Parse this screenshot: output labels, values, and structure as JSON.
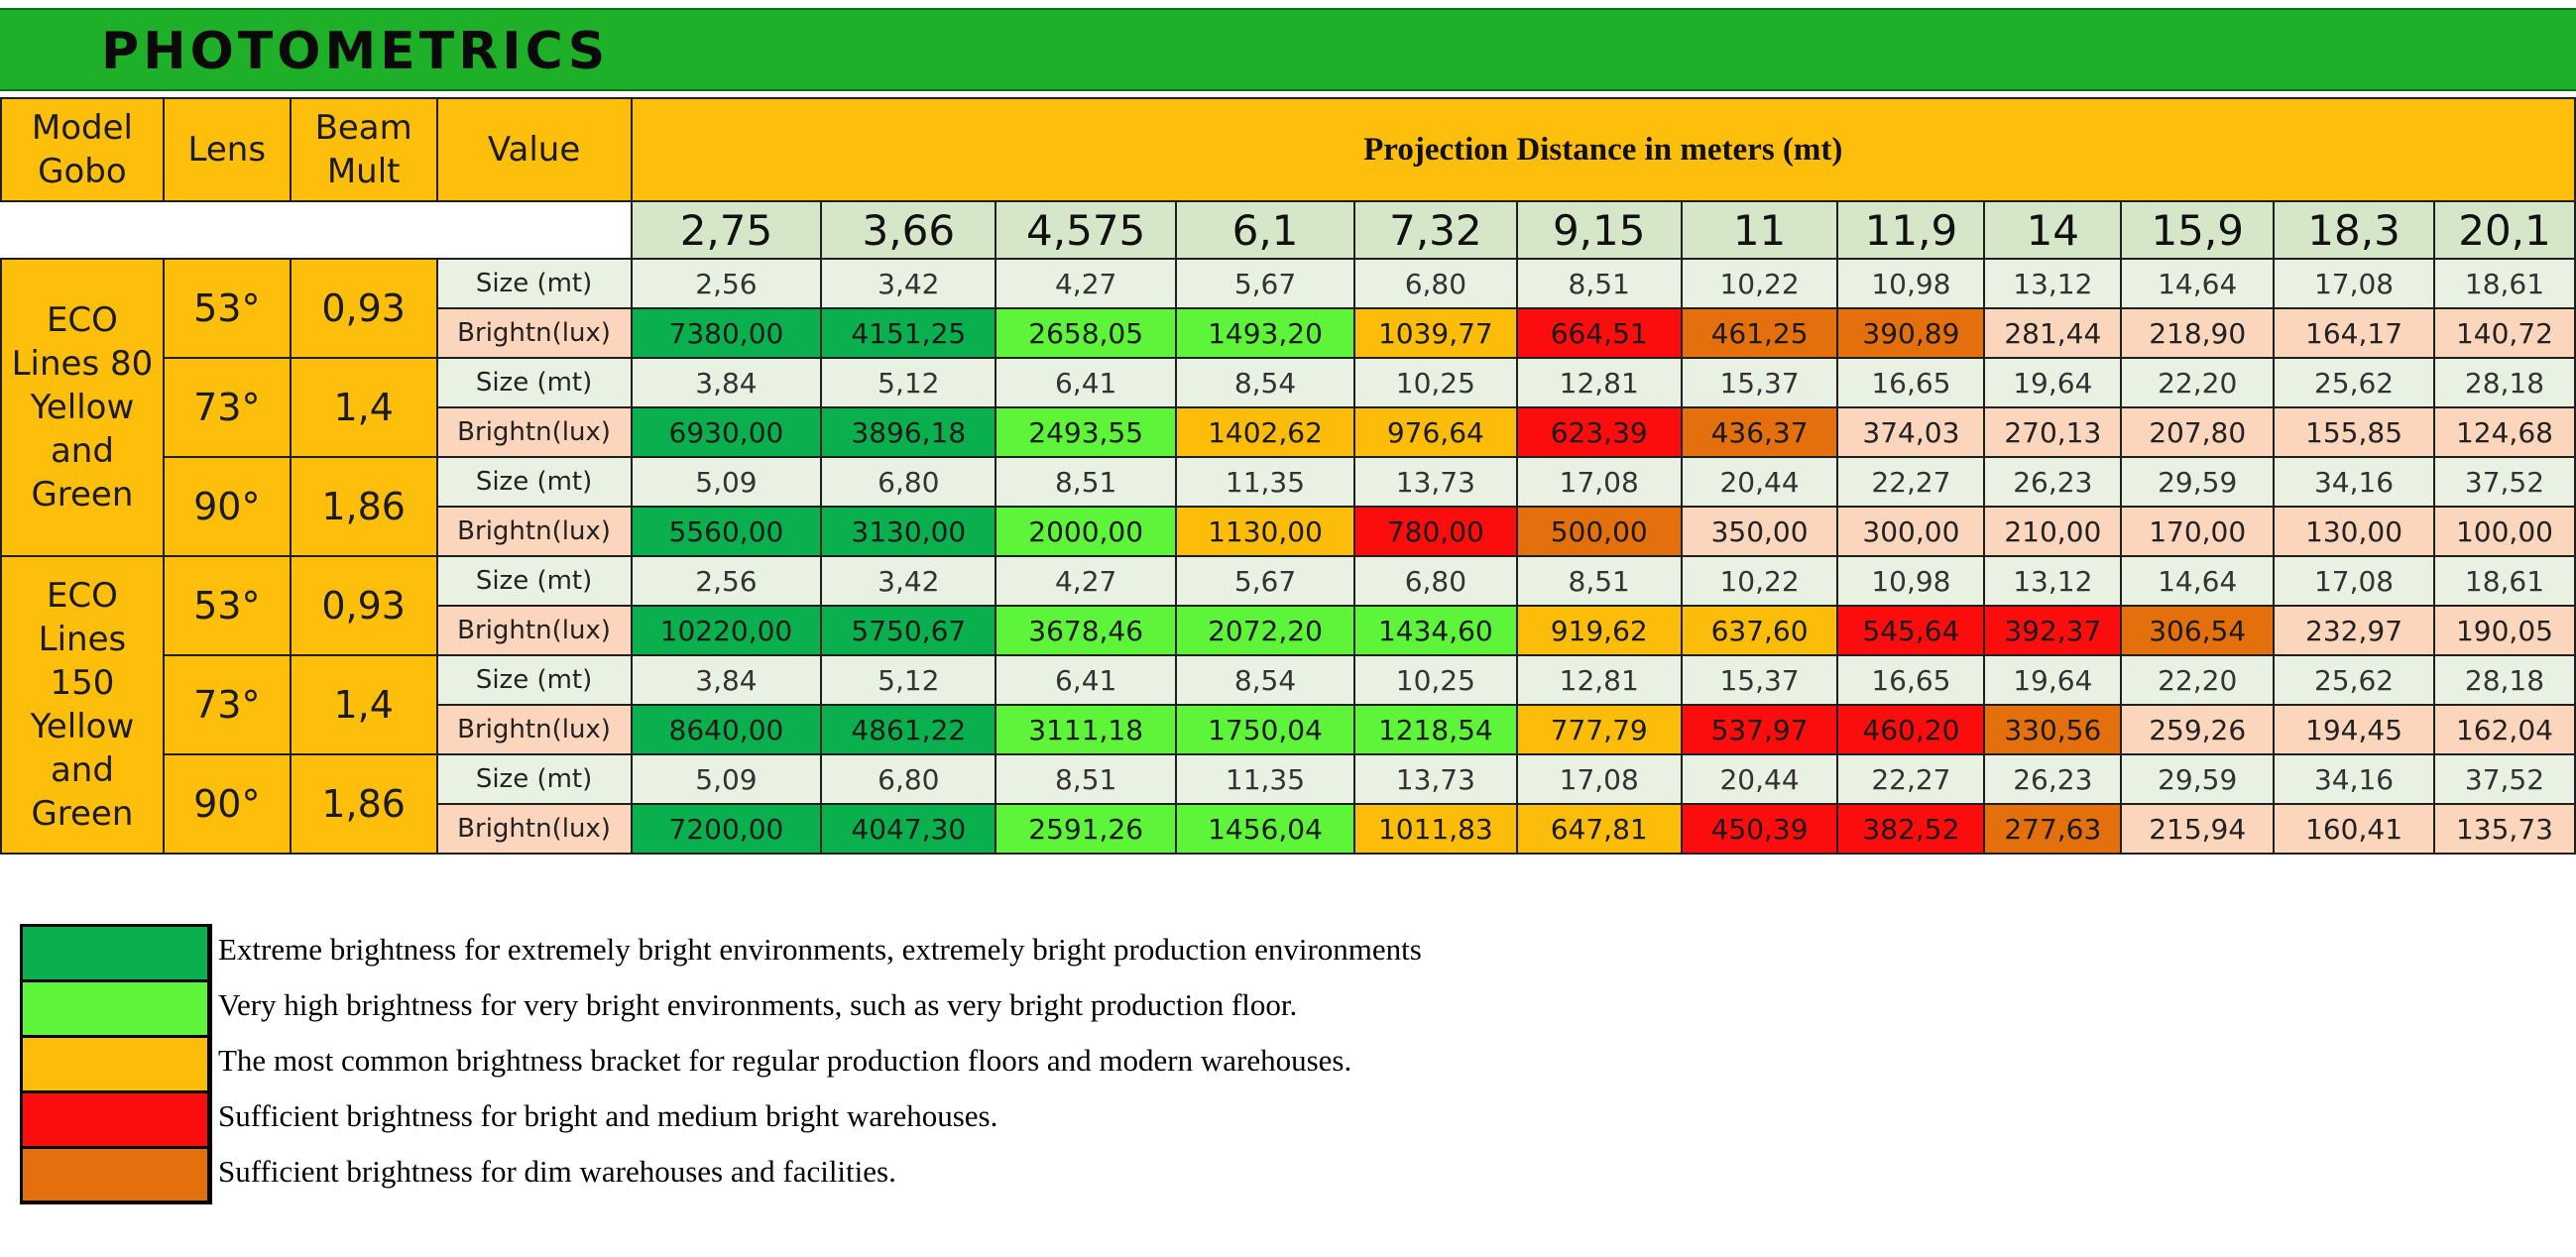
{
  "title": "PHOTOMETRICS",
  "headers": {
    "model_gobo": "Model Gobo",
    "lens": "Lens",
    "beam_mult": "Beam Mult",
    "value": "Value",
    "projection": "Projection Distance in meters (mt)"
  },
  "distances": [
    "2,75",
    "3,66",
    "4,575",
    "6,1",
    "7,32",
    "9,15",
    "11",
    "11,9",
    "14",
    "15,9",
    "18,3",
    "20,1"
  ],
  "labels": {
    "size": "Size (mt)",
    "brightness": "Brightn(lux)"
  },
  "colors": {
    "xg": "#0bb04e",
    "vg": "#5ef43a",
    "am": "#fcbd0a",
    "rd": "#fb0d0d",
    "or": "#e3700d",
    "lt": "#fcd5bd"
  },
  "groups": [
    {
      "model": "ECO Lines 80 Yellow and Green",
      "rows": [
        {
          "lens": "53°",
          "beam": "0,93",
          "size": [
            "2,56",
            "3,42",
            "4,27",
            "5,67",
            "6,80",
            "8,51",
            "10,22",
            "10,98",
            "13,12",
            "14,64",
            "17,08",
            "18,61"
          ],
          "brightness": [
            "7380,00",
            "4151,25",
            "2658,05",
            "1493,20",
            "1039,77",
            "664,51",
            "461,25",
            "390,89",
            "281,44",
            "218,90",
            "164,17",
            "140,72"
          ],
          "classes": [
            "xg",
            "xg",
            "vg",
            "vg",
            "am",
            "rd",
            "or",
            "or",
            "lt",
            "lt",
            "lt",
            "lt"
          ]
        },
        {
          "lens": "73°",
          "beam": "1,4",
          "size": [
            "3,84",
            "5,12",
            "6,41",
            "8,54",
            "10,25",
            "12,81",
            "15,37",
            "16,65",
            "19,64",
            "22,20",
            "25,62",
            "28,18"
          ],
          "brightness": [
            "6930,00",
            "3896,18",
            "2493,55",
            "1402,62",
            "976,64",
            "623,39",
            "436,37",
            "374,03",
            "270,13",
            "207,80",
            "155,85",
            "124,68"
          ],
          "classes": [
            "xg",
            "xg",
            "vg",
            "am",
            "am",
            "rd",
            "or",
            "lt",
            "lt",
            "lt",
            "lt",
            "lt"
          ]
        },
        {
          "lens": "90°",
          "beam": "1,86",
          "size": [
            "5,09",
            "6,80",
            "8,51",
            "11,35",
            "13,73",
            "17,08",
            "20,44",
            "22,27",
            "26,23",
            "29,59",
            "34,16",
            "37,52"
          ],
          "brightness": [
            "5560,00",
            "3130,00",
            "2000,00",
            "1130,00",
            "780,00",
            "500,00",
            "350,00",
            "300,00",
            "210,00",
            "170,00",
            "130,00",
            "100,00"
          ],
          "classes": [
            "xg",
            "xg",
            "vg",
            "am",
            "rd",
            "or",
            "lt",
            "lt",
            "lt",
            "lt",
            "lt",
            "lt"
          ]
        }
      ]
    },
    {
      "model": "ECO Lines 150 Yellow and Green",
      "rows": [
        {
          "lens": "53°",
          "beam": "0,93",
          "size": [
            "2,56",
            "3,42",
            "4,27",
            "5,67",
            "6,80",
            "8,51",
            "10,22",
            "10,98",
            "13,12",
            "14,64",
            "17,08",
            "18,61"
          ],
          "brightness": [
            "10220,00",
            "5750,67",
            "3678,46",
            "2072,20",
            "1434,60",
            "919,62",
            "637,60",
            "545,64",
            "392,37",
            "306,54",
            "232,97",
            "190,05"
          ],
          "classes": [
            "xg",
            "xg",
            "vg",
            "vg",
            "vg",
            "am",
            "am",
            "rd",
            "rd",
            "or",
            "lt",
            "lt"
          ]
        },
        {
          "lens": "73°",
          "beam": "1,4",
          "size": [
            "3,84",
            "5,12",
            "6,41",
            "8,54",
            "10,25",
            "12,81",
            "15,37",
            "16,65",
            "19,64",
            "22,20",
            "25,62",
            "28,18"
          ],
          "brightness": [
            "8640,00",
            "4861,22",
            "3111,18",
            "1750,04",
            "1218,54",
            "777,79",
            "537,97",
            "460,20",
            "330,56",
            "259,26",
            "194,45",
            "162,04"
          ],
          "classes": [
            "xg",
            "xg",
            "vg",
            "vg",
            "vg",
            "am",
            "rd",
            "rd",
            "or",
            "lt",
            "lt",
            "lt"
          ]
        },
        {
          "lens": "90°",
          "beam": "1,86",
          "size": [
            "5,09",
            "6,80",
            "8,51",
            "11,35",
            "13,73",
            "17,08",
            "20,44",
            "22,27",
            "26,23",
            "29,59",
            "34,16",
            "37,52"
          ],
          "brightness": [
            "7200,00",
            "4047,30",
            "2591,26",
            "1456,04",
            "1011,83",
            "647,81",
            "450,39",
            "382,52",
            "277,63",
            "215,94",
            "160,41",
            "135,73"
          ],
          "classes": [
            "xg",
            "xg",
            "vg",
            "vg",
            "am",
            "am",
            "rd",
            "rd",
            "or",
            "lt",
            "lt",
            "lt"
          ]
        }
      ]
    }
  ],
  "legend": [
    {
      "key": "xg",
      "text": "Extreme brightness for extremely bright environments, extremely bright production environments"
    },
    {
      "key": "vg",
      "text": "Very high brightness for very bright environments, such as very bright production floor."
    },
    {
      "key": "am",
      "text": "The most common brightness bracket for regular production floors and modern warehouses."
    },
    {
      "key": "rd",
      "text": "Sufficient brightness for bright and medium bright warehouses."
    },
    {
      "key": "or",
      "text": "Sufficient brightness for dim warehouses and facilities."
    }
  ]
}
